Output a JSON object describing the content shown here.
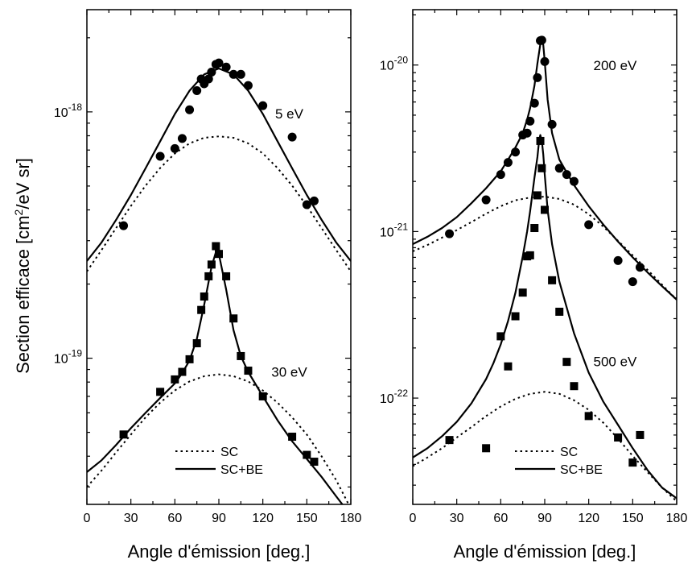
{
  "figure": {
    "ylabel_main": "Section efficace [cm",
    "ylabel_sup": "2",
    "ylabel_end": "/eV sr]"
  },
  "chart_data": [
    {
      "type": "line",
      "xlabel": "Angle d'émission [deg.]",
      "xlim": [
        0,
        180
      ],
      "xticks": [
        0,
        30,
        60,
        90,
        120,
        150,
        180
      ],
      "yscale": "log",
      "ylim": [
        2.55e-20,
        2.6e-18
      ],
      "ytick_labels": [
        {
          "value": 1e-18,
          "base": "10",
          "exp": "-18"
        },
        {
          "value": 1e-19,
          "base": "10",
          "exp": "-19"
        }
      ],
      "grid": false,
      "legend": {
        "position": "bottom-center",
        "entries": [
          "SC",
          "SC+BE"
        ]
      },
      "annotations": [
        {
          "text": "5 eV",
          "x": 138,
          "y": 9.4e-19
        },
        {
          "text": "30 eV",
          "x": 138,
          "y": 8.4e-20
        }
      ],
      "series": [
        {
          "name": "SC",
          "energy": "5 eV",
          "style": "dotted",
          "x": [
            0,
            10,
            20,
            30,
            40,
            50,
            60,
            70,
            80,
            90,
            100,
            110,
            120,
            130,
            140,
            150,
            160,
            170,
            180
          ],
          "y": [
            2.25e-19,
            2.75e-19,
            3.38e-19,
            4.15e-19,
            5.02e-19,
            5.92e-19,
            6.78e-19,
            7.45e-19,
            7.85e-19,
            7.95e-19,
            7.85e-19,
            7.45e-19,
            6.78e-19,
            5.92e-19,
            5.02e-19,
            4.15e-19,
            3.38e-19,
            2.75e-19,
            2.25e-19
          ]
        },
        {
          "name": "SC+BE",
          "energy": "5 eV",
          "style": "solid",
          "x": [
            0,
            10,
            20,
            30,
            40,
            50,
            60,
            70,
            80,
            90,
            100,
            110,
            120,
            130,
            140,
            150,
            160,
            170,
            180
          ],
          "y": [
            2.48e-19,
            2.95e-19,
            3.65e-19,
            4.6e-19,
            5.9e-19,
            7.6e-19,
            9.8e-19,
            1.22e-18,
            1.42e-18,
            1.5e-18,
            1.42e-18,
            1.22e-18,
            9.8e-19,
            7.6e-19,
            5.9e-19,
            4.6e-19,
            3.65e-19,
            2.95e-19,
            2.48e-19
          ]
        },
        {
          "name": "SC",
          "energy": "30 eV",
          "style": "dotted",
          "x": [
            0,
            10,
            20,
            30,
            40,
            50,
            60,
            70,
            80,
            90,
            100,
            110,
            120,
            130,
            140,
            150,
            160,
            170,
            180
          ],
          "y": [
            3e-20,
            3.5e-20,
            4.15e-20,
            4.9e-20,
            5.75e-20,
            6.6e-20,
            7.4e-20,
            8.05e-20,
            8.45e-20,
            8.6e-20,
            8.45e-20,
            8.05e-20,
            7.4e-20,
            6.6e-20,
            5.75e-20,
            4.9e-20,
            4e-20,
            3.2e-20,
            2.45e-20
          ]
        },
        {
          "name": "SC+BE",
          "energy": "30 eV",
          "style": "solid",
          "x": [
            0,
            10,
            20,
            30,
            40,
            50,
            60,
            65,
            70,
            75,
            80,
            85,
            88,
            90,
            95,
            100,
            105,
            110,
            120,
            130,
            140,
            150,
            160,
            170,
            180
          ],
          "y": [
            3.45e-20,
            3.85e-20,
            4.45e-20,
            5.2e-20,
            6e-20,
            6.9e-20,
            7.9e-20,
            8.7e-20,
            9.8e-20,
            1.2e-19,
            1.65e-19,
            2.35e-19,
            2.7e-19,
            2.65e-19,
            1.9e-19,
            1.3e-19,
            1.02e-19,
            8.8e-20,
            7e-20,
            5.6e-20,
            4.6e-20,
            3.9e-20,
            3.3e-20,
            2.75e-20,
            2.3e-20
          ]
        },
        {
          "name": "5 eV exp",
          "energy": "5 eV",
          "style": "circles",
          "x": [
            25,
            50,
            60,
            65,
            70,
            75,
            78,
            80,
            83,
            85,
            88,
            90,
            95,
            100,
            105,
            110,
            120,
            140,
            150,
            155
          ],
          "y": [
            3.45e-19,
            6.6e-19,
            7.1e-19,
            7.8e-19,
            1.02e-18,
            1.22e-18,
            1.36e-18,
            1.3e-18,
            1.36e-18,
            1.45e-18,
            1.56e-18,
            1.58e-18,
            1.52e-18,
            1.42e-18,
            1.42e-18,
            1.28e-18,
            1.06e-18,
            7.9e-19,
            4.2e-19,
            4.35e-19
          ]
        },
        {
          "name": "30 eV exp",
          "energy": "30 eV",
          "style": "squares",
          "x": [
            25,
            50,
            60,
            65,
            70,
            75,
            78,
            80,
            83,
            85,
            88,
            90,
            95,
            100,
            105,
            110,
            120,
            140,
            150,
            155
          ],
          "y": [
            4.9e-20,
            7.3e-20,
            8.2e-20,
            8.8e-20,
            9.9e-20,
            1.15e-19,
            1.57e-19,
            1.78e-19,
            2.15e-19,
            2.4e-19,
            2.85e-19,
            2.65e-19,
            2.15e-19,
            1.45e-19,
            1.02e-19,
            8.9e-20,
            7e-20,
            4.8e-20,
            4.05e-20,
            3.8e-20
          ]
        }
      ]
    },
    {
      "type": "line",
      "xlabel": "Angle d'émission [deg.]",
      "xlim": [
        0,
        180
      ],
      "xticks": [
        0,
        30,
        60,
        90,
        120,
        150,
        180
      ],
      "yscale": "log",
      "ylim": [
        2.3e-23,
        2.15e-20
      ],
      "ytick_labels": [
        {
          "value": 1e-20,
          "base": "10",
          "exp": "-20"
        },
        {
          "value": 1e-21,
          "base": "10",
          "exp": "-21"
        },
        {
          "value": 1e-22,
          "base": "10",
          "exp": "-22"
        }
      ],
      "grid": false,
      "legend": {
        "position": "bottom-center",
        "entries": [
          "SC",
          "SC+BE"
        ]
      },
      "annotations": [
        {
          "text": "200 eV",
          "x": 138,
          "y": 9.3e-21
        },
        {
          "text": "500 eV",
          "x": 138,
          "y": 1.55e-22
        }
      ],
      "series": [
        {
          "name": "SC",
          "energy": "200 eV",
          "style": "dotted",
          "x": [
            0,
            10,
            20,
            30,
            40,
            50,
            60,
            70,
            80,
            90,
            100,
            110,
            120,
            130,
            140,
            150,
            160,
            170,
            180
          ],
          "y": [
            7.6e-22,
            8.3e-22,
            9.2e-22,
            1.02e-21,
            1.14e-21,
            1.28e-21,
            1.42e-21,
            1.54e-21,
            1.6e-21,
            1.62e-21,
            1.57e-21,
            1.45e-21,
            1.27e-21,
            1.07e-21,
            8.8e-22,
            7.2e-22,
            5.9e-22,
            4.8e-22,
            3.9e-22
          ]
        },
        {
          "name": "SC+BE",
          "energy": "200 eV",
          "style": "solid",
          "x": [
            0,
            10,
            20,
            30,
            40,
            50,
            60,
            65,
            70,
            75,
            78,
            80,
            83,
            85,
            87,
            88,
            89,
            90,
            92,
            95,
            100,
            110,
            120,
            130,
            140,
            150,
            160,
            170,
            180
          ],
          "y": [
            8.4e-22,
            9.3e-22,
            1.05e-21,
            1.22e-21,
            1.48e-21,
            1.82e-21,
            2.3e-21,
            2.7e-21,
            3.2e-21,
            3.9e-21,
            4.7e-21,
            5.5e-21,
            7.5e-21,
            1.02e-20,
            1.33e-20,
            1.4e-20,
            1.32e-20,
            1.05e-20,
            6.2e-21,
            3.9e-21,
            2.7e-21,
            1.9e-21,
            1.42e-21,
            1.1e-21,
            8.7e-22,
            7e-22,
            5.7e-22,
            4.7e-22,
            3.9e-22
          ]
        },
        {
          "name": "SC",
          "energy": "500 eV",
          "style": "dotted",
          "x": [
            0,
            10,
            20,
            30,
            40,
            50,
            60,
            70,
            80,
            90,
            100,
            110,
            120,
            130,
            140,
            150,
            160,
            170,
            180
          ],
          "y": [
            3.9e-23,
            4.4e-23,
            5e-23,
            5.8e-23,
            6.7e-23,
            7.8e-23,
            8.9e-23,
            9.9e-23,
            1.06e-22,
            1.09e-22,
            1.06e-22,
            9.7e-23,
            8.5e-23,
            7.1e-23,
            5.7e-23,
            4.5e-23,
            3.6e-23,
            2.9e-23,
            2.4e-23
          ]
        },
        {
          "name": "SC+BE",
          "energy": "500 eV",
          "style": "solid",
          "x": [
            0,
            10,
            20,
            30,
            40,
            50,
            55,
            60,
            65,
            70,
            75,
            78,
            80,
            83,
            85,
            86,
            87,
            88,
            89,
            90,
            92,
            95,
            100,
            105,
            110,
            120,
            130,
            140,
            150,
            160,
            170,
            180
          ],
          "y": [
            4.4e-23,
            5e-23,
            5.9e-23,
            7.2e-23,
            9.3e-23,
            1.3e-22,
            1.62e-22,
            2.1e-22,
            2.9e-22,
            4.3e-22,
            7.1e-22,
            1e-21,
            1.32e-21,
            2.1e-21,
            2.8e-21,
            3.4e-21,
            3.8e-21,
            3.5e-21,
            2.9e-21,
            2.2e-21,
            1.35e-21,
            8.4e-22,
            5e-22,
            3.5e-22,
            2.45e-22,
            1.42e-22,
            9.5e-23,
            6.9e-23,
            5e-23,
            3.7e-23,
            2.9e-23,
            2.5e-23
          ]
        },
        {
          "name": "200 eV exp",
          "energy": "200 eV",
          "style": "circles",
          "x": [
            25,
            50,
            60,
            65,
            70,
            75,
            78,
            80,
            83,
            85,
            87,
            88,
            90,
            95,
            100,
            105,
            110,
            120,
            140,
            150,
            155
          ],
          "y": [
            9.7e-22,
            1.55e-21,
            2.2e-21,
            2.6e-21,
            3e-21,
            3.8e-21,
            3.9e-21,
            4.6e-21,
            5.9e-21,
            8.4e-21,
            1.4e-20,
            1.41e-20,
            1.05e-20,
            4.4e-21,
            2.4e-21,
            2.2e-21,
            2e-21,
            1.1e-21,
            6.7e-22,
            5e-22,
            6.1e-22
          ]
        },
        {
          "name": "500 eV exp",
          "energy": "500 eV",
          "style": "squares",
          "x": [
            25,
            50,
            60,
            65,
            70,
            75,
            78,
            80,
            83,
            85,
            87,
            88,
            90,
            95,
            100,
            105,
            110,
            120,
            140,
            150,
            155
          ],
          "y": [
            5.6e-23,
            5e-23,
            2.35e-22,
            1.55e-22,
            3.1e-22,
            4.3e-22,
            7.1e-22,
            7.2e-22,
            1.05e-21,
            1.65e-21,
            3.5e-21,
            2.4e-21,
            1.35e-21,
            5.1e-22,
            3.3e-22,
            1.65e-22,
            1.18e-22,
            7.8e-23,
            5.8e-23,
            4.1e-23,
            6e-23
          ]
        }
      ]
    }
  ]
}
